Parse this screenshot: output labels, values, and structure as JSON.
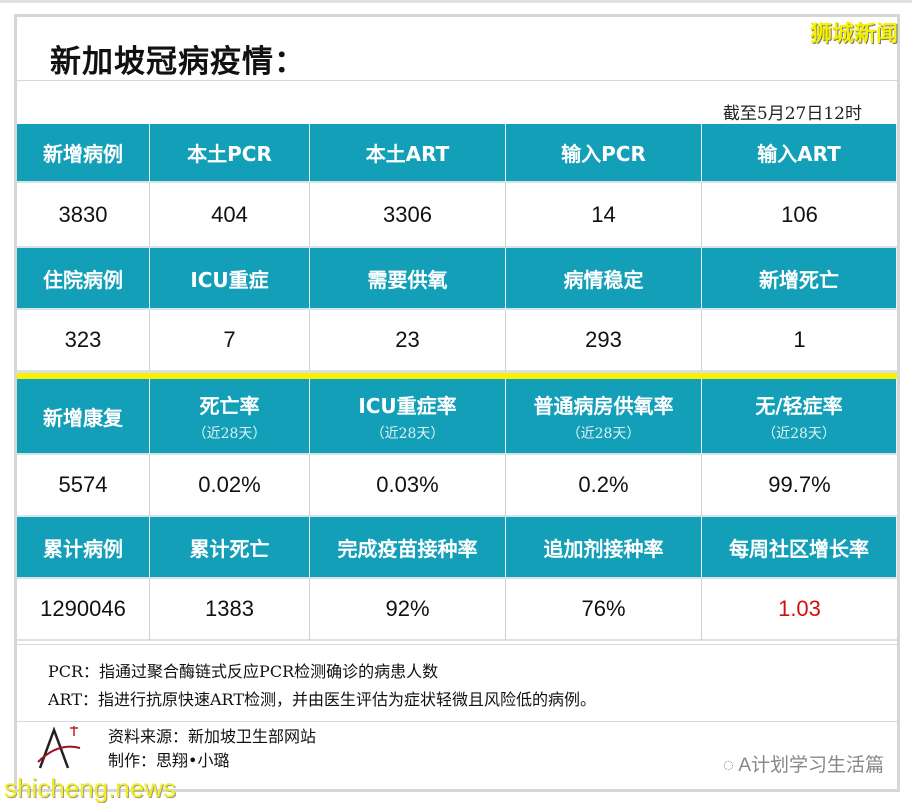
{
  "title": "新加坡冠病疫情：",
  "brand": "狮城新闻",
  "date": "截至5月27日12时",
  "rows": [
    {
      "type": "head",
      "cells": [
        {
          "label": "新增病例"
        },
        {
          "label": "本土PCR"
        },
        {
          "label": "本土ART"
        },
        {
          "label": "输入PCR"
        },
        {
          "label": "输入ART"
        }
      ]
    },
    {
      "type": "val",
      "cells": [
        "3830",
        "404",
        "3306",
        "14",
        "106"
      ]
    },
    {
      "type": "head",
      "cells": [
        {
          "label": "住院病例"
        },
        {
          "label": "ICU重症"
        },
        {
          "label": "需要供氧"
        },
        {
          "label": "病情稳定"
        },
        {
          "label": "新增死亡"
        }
      ]
    },
    {
      "type": "val",
      "cells": [
        "323",
        "7",
        "23",
        "293",
        "1"
      ]
    },
    {
      "type": "yellow"
    },
    {
      "type": "head",
      "tall": true,
      "cells": [
        {
          "label": "新增康复"
        },
        {
          "label": "死亡率",
          "sub": "（近28天）"
        },
        {
          "label": "ICU重症率",
          "sub": "（近28天）"
        },
        {
          "label": "普通病房供氧率",
          "sub": "（近28天）"
        },
        {
          "label": "无/轻症率",
          "sub": "（近28天）"
        }
      ]
    },
    {
      "type": "val",
      "cells": [
        "5574",
        "0.02%",
        "0.03%",
        "0.2%",
        "99.7%"
      ]
    },
    {
      "type": "head",
      "cells": [
        {
          "label": "累计病例"
        },
        {
          "label": "累计死亡"
        },
        {
          "label": "完成疫苗接种率"
        },
        {
          "label": "追加剂接种率"
        },
        {
          "label": "每周社区增长率"
        }
      ]
    },
    {
      "type": "val",
      "cells": [
        "1290046",
        "1383",
        "92%",
        "76%",
        "1.03"
      ],
      "highlight_index": 4,
      "highlight_color": "#d01010"
    }
  ],
  "notes": [
    "PCR：指通过聚合酶链式反应PCR检测确诊的病患人数",
    "ART：指进行抗原快速ART检测，并由医生评估为症状轻微且风险低的病例。"
  ],
  "footer": {
    "source": "资料来源：新加坡卫生部网站",
    "author": "制作：思翔•小璐"
  },
  "watermark": "shicheng.news",
  "account": "A计划学习生活篇",
  "colors": {
    "header": "#149fb8",
    "accent": "#fbf000",
    "highlight": "#d01010"
  }
}
